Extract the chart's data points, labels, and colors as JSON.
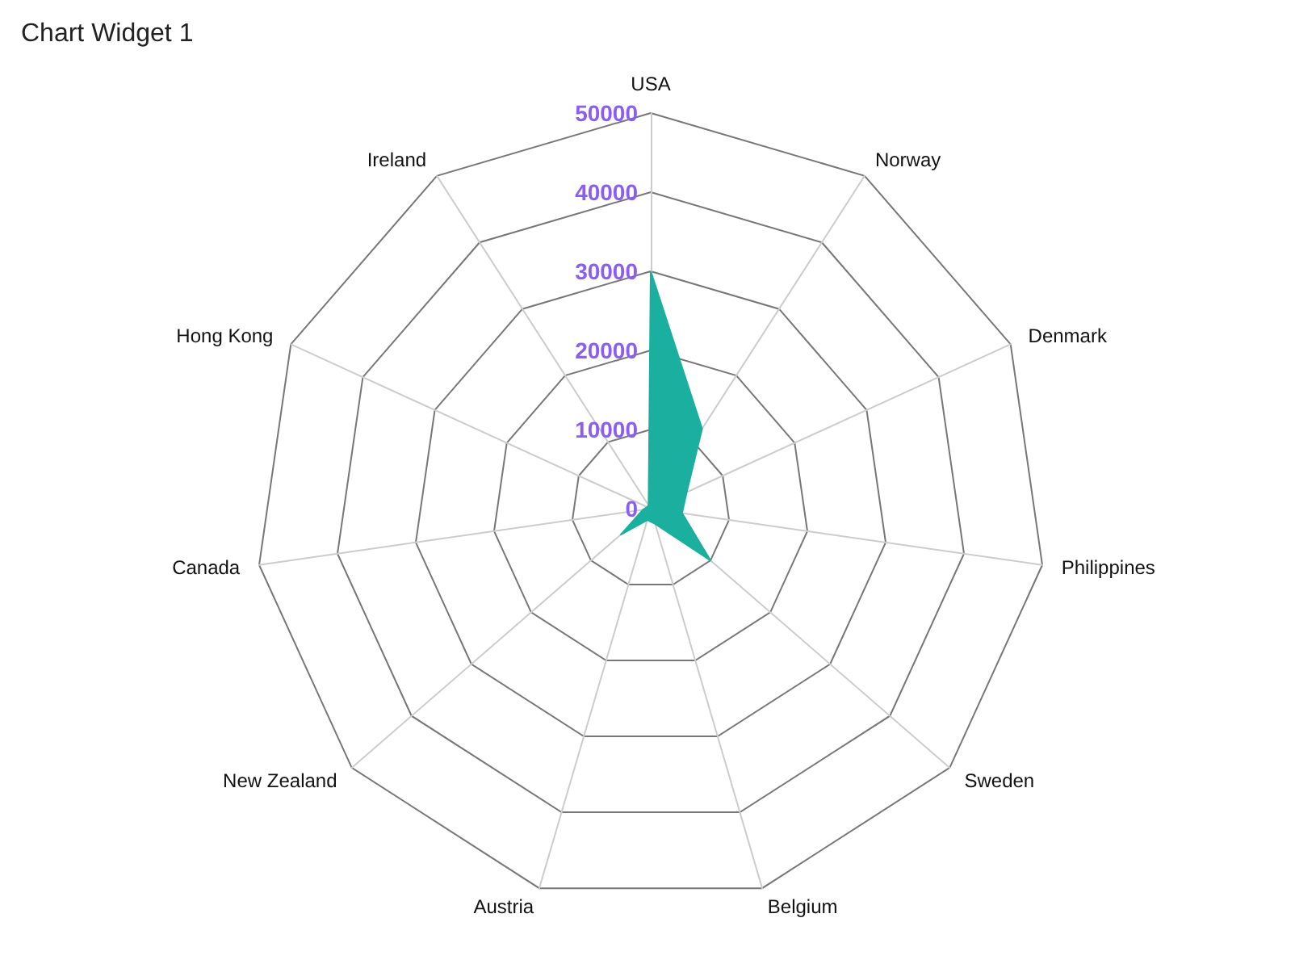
{
  "chart_data": {
    "type": "radar",
    "title": "Chart Widget 1",
    "categories": [
      "USA",
      "Norway",
      "Denmark",
      "Philippines",
      "Sweden",
      "Belgium",
      "Austria",
      "New Zealand",
      "Canada",
      "Hong Kong",
      "Ireland"
    ],
    "series": [
      {
        "color": "#1aaf9f",
        "values": [
          30000,
          12000,
          5000,
          4000,
          10000,
          2000,
          1500,
          5000,
          1000,
          500,
          500
        ]
      }
    ],
    "ylim": [
      0,
      50000
    ],
    "yticks": [
      0,
      10000,
      20000,
      30000,
      40000,
      50000
    ],
    "legend": false
  }
}
